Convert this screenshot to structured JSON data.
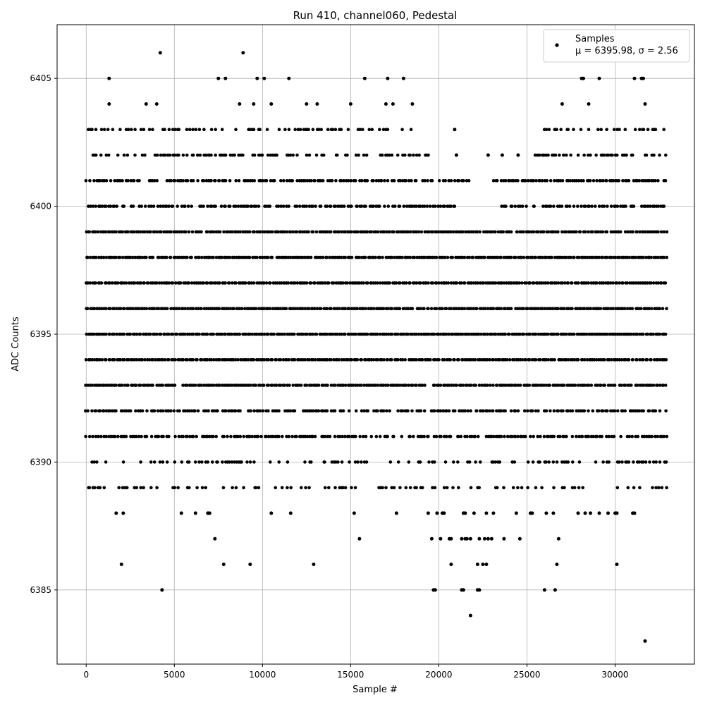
{
  "chart_data": {
    "type": "scatter",
    "title": "Run 410, channel060, Pedestal",
    "xlabel": "Sample #",
    "ylabel": "ADC Counts",
    "xlim": [
      -1650,
      34500
    ],
    "ylim": [
      6382.1,
      6407.1
    ],
    "xticks": [
      0,
      5000,
      10000,
      15000,
      20000,
      25000,
      30000
    ],
    "yticks": [
      6385,
      6390,
      6395,
      6400,
      6405
    ],
    "grid": true,
    "legend": {
      "position": "top-right",
      "entries": [
        "Samples",
        "μ = 6395.98, σ = 2.56"
      ]
    },
    "marker_color": "#000000",
    "series": [
      {
        "name": "Samples",
        "x_range": [
          0,
          32900
        ],
        "levels": [
          {
            "y": 6403,
            "x_ranges": [
              [
                0,
                19200
              ],
              [
                26000,
                32900
              ]
            ],
            "density": 0.45
          },
          {
            "y": 6402,
            "x_ranges": [
              [
                0,
                19500
              ],
              [
                25500,
                32900
              ]
            ],
            "density": 0.55
          },
          {
            "y": 6401,
            "x_ranges": [
              [
                0,
                21800
              ],
              [
                23000,
                32900
              ]
            ],
            "density": 0.8
          },
          {
            "y": 6400,
            "x_ranges": [
              [
                0,
                21000
              ],
              [
                23500,
                32900
              ]
            ],
            "density": 0.75
          },
          {
            "y": 6399,
            "x_ranges": [
              [
                0,
                32900
              ]
            ],
            "density": 0.95
          },
          {
            "y": 6398,
            "x_ranges": [
              [
                0,
                32900
              ]
            ],
            "density": 0.98
          },
          {
            "y": 6397,
            "x_ranges": [
              [
                0,
                32900
              ]
            ],
            "density": 1.0
          },
          {
            "y": 6396,
            "x_ranges": [
              [
                0,
                32900
              ]
            ],
            "density": 0.98
          },
          {
            "y": 6395,
            "x_ranges": [
              [
                0,
                32900
              ]
            ],
            "density": 1.0
          },
          {
            "y": 6394,
            "x_ranges": [
              [
                0,
                32900
              ]
            ],
            "density": 0.98
          },
          {
            "y": 6393,
            "x_ranges": [
              [
                0,
                32900
              ]
            ],
            "density": 0.95
          },
          {
            "y": 6392,
            "x_ranges": [
              [
                0,
                32900
              ]
            ],
            "density": 0.75
          },
          {
            "y": 6391,
            "x_ranges": [
              [
                0,
                32900
              ]
            ],
            "density": 0.75
          },
          {
            "y": 6390,
            "x_ranges": [
              [
                0,
                32900
              ]
            ],
            "density": 0.35
          },
          {
            "y": 6389,
            "x_ranges": [
              [
                0,
                32900
              ]
            ],
            "density": 0.3
          }
        ],
        "sparse_points": [
          [
            1300,
            6405
          ],
          [
            7500,
            6405
          ],
          [
            7900,
            6405
          ],
          [
            9700,
            6405
          ],
          [
            10100,
            6405
          ],
          [
            11500,
            6405
          ],
          [
            15800,
            6405
          ],
          [
            17100,
            6405
          ],
          [
            18000,
            6405
          ],
          [
            28100,
            6405
          ],
          [
            28200,
            6405
          ],
          [
            29100,
            6405
          ],
          [
            31100,
            6405
          ],
          [
            31500,
            6405
          ],
          [
            31600,
            6405
          ],
          [
            4200,
            6406
          ],
          [
            8900,
            6406
          ],
          [
            1300,
            6404
          ],
          [
            3400,
            6404
          ],
          [
            4000,
            6404
          ],
          [
            8700,
            6404
          ],
          [
            9500,
            6404
          ],
          [
            10500,
            6404
          ],
          [
            12500,
            6404
          ],
          [
            13100,
            6404
          ],
          [
            15000,
            6404
          ],
          [
            17000,
            6404
          ],
          [
            17400,
            6404
          ],
          [
            18500,
            6404
          ],
          [
            27000,
            6404
          ],
          [
            28500,
            6404
          ],
          [
            31700,
            6404
          ],
          [
            20900,
            6403
          ],
          [
            21000,
            6402
          ],
          [
            22800,
            6402
          ],
          [
            23600,
            6402
          ],
          [
            24500,
            6402
          ],
          [
            1700,
            6388
          ],
          [
            2100,
            6388
          ],
          [
            5400,
            6388
          ],
          [
            6200,
            6388
          ],
          [
            6900,
            6388
          ],
          [
            7000,
            6388
          ],
          [
            10500,
            6388
          ],
          [
            11600,
            6388
          ],
          [
            15200,
            6388
          ],
          [
            17600,
            6388
          ],
          [
            19400,
            6388
          ],
          [
            19900,
            6388
          ],
          [
            20200,
            6388
          ],
          [
            20300,
            6388
          ],
          [
            21400,
            6388
          ],
          [
            21500,
            6388
          ],
          [
            22000,
            6388
          ],
          [
            22700,
            6388
          ],
          [
            23100,
            6388
          ],
          [
            24400,
            6388
          ],
          [
            25200,
            6388
          ],
          [
            25300,
            6388
          ],
          [
            26100,
            6388
          ],
          [
            26500,
            6388
          ],
          [
            27900,
            6388
          ],
          [
            28300,
            6388
          ],
          [
            28600,
            6388
          ],
          [
            29100,
            6388
          ],
          [
            29600,
            6388
          ],
          [
            30000,
            6388
          ],
          [
            30100,
            6388
          ],
          [
            31000,
            6388
          ],
          [
            31100,
            6388
          ],
          [
            7300,
            6387
          ],
          [
            15500,
            6387
          ],
          [
            19600,
            6387
          ],
          [
            20100,
            6387
          ],
          [
            20600,
            6387
          ],
          [
            20700,
            6387
          ],
          [
            21300,
            6387
          ],
          [
            21500,
            6387
          ],
          [
            21600,
            6387
          ],
          [
            21800,
            6387
          ],
          [
            22300,
            6387
          ],
          [
            22600,
            6387
          ],
          [
            22800,
            6387
          ],
          [
            23000,
            6387
          ],
          [
            23700,
            6387
          ],
          [
            24600,
            6387
          ],
          [
            26800,
            6387
          ],
          [
            2000,
            6386
          ],
          [
            7800,
            6386
          ],
          [
            9300,
            6386
          ],
          [
            12900,
            6386
          ],
          [
            20700,
            6386
          ],
          [
            22200,
            6386
          ],
          [
            22500,
            6386
          ],
          [
            22700,
            6386
          ],
          [
            26700,
            6386
          ],
          [
            30100,
            6386
          ],
          [
            4300,
            6385
          ],
          [
            19700,
            6385
          ],
          [
            19800,
            6385
          ],
          [
            21300,
            6385
          ],
          [
            21400,
            6385
          ],
          [
            22200,
            6385
          ],
          [
            22300,
            6385
          ],
          [
            26000,
            6385
          ],
          [
            26600,
            6385
          ],
          [
            21800,
            6384
          ],
          [
            31700,
            6383
          ]
        ]
      }
    ]
  }
}
